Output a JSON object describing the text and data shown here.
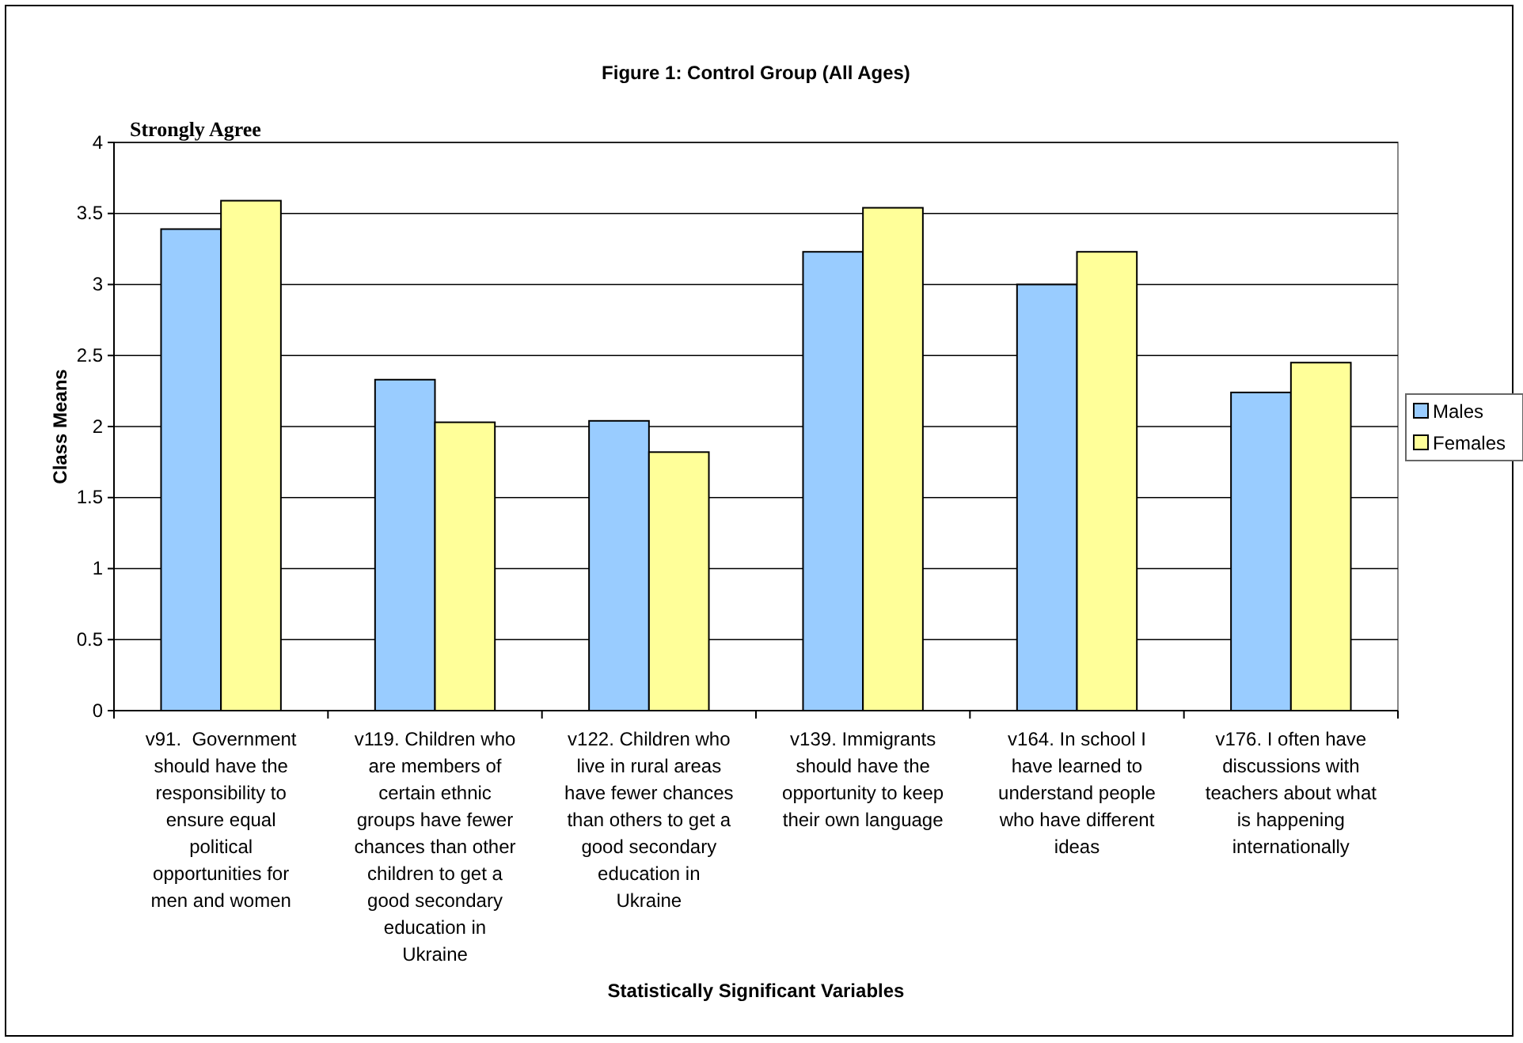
{
  "chart_data": {
    "type": "bar",
    "title": "Figure 1:  Control Group (All Ages)",
    "xlabel": "Statistically Significant Variables",
    "ylabel": "Class Means",
    "annotations": [
      "Strongly Agree"
    ],
    "categories": [
      "v91.  Government\nshould have the\nresponsibility to\nensure equal\npolitical\nopportunities for\nmen and women",
      "v119. Children who\nare members of\ncertain ethnic\ngroups have fewer\nchances than other\nchildren to get a\ngood secondary\neducation in\nUkraine",
      "v122. Children who\nlive in rural areas\nhave fewer chances\nthan others to get a\ngood secondary\neducation in\nUkraine",
      "v139. Immigrants\nshould have the\nopportunity to keep\ntheir own language",
      "v164. In school I\nhave learned to\nunderstand people\nwho have different\nideas",
      "v176. I often have\ndiscussions with\nteachers about what\nis happening\ninternationally"
    ],
    "series": [
      {
        "name": "Males",
        "color": "#99ccff",
        "values": [
          3.39,
          2.33,
          2.04,
          3.23,
          3.0,
          2.24
        ]
      },
      {
        "name": "Females",
        "color": "#ffff99",
        "values": [
          3.59,
          2.03,
          1.82,
          3.54,
          3.23,
          2.45
        ]
      }
    ],
    "ylim": [
      0,
      4
    ],
    "yticks": [
      0,
      0.5,
      1,
      1.5,
      2,
      2.5,
      3,
      3.5,
      4
    ],
    "grid": "y",
    "legend": "right"
  }
}
